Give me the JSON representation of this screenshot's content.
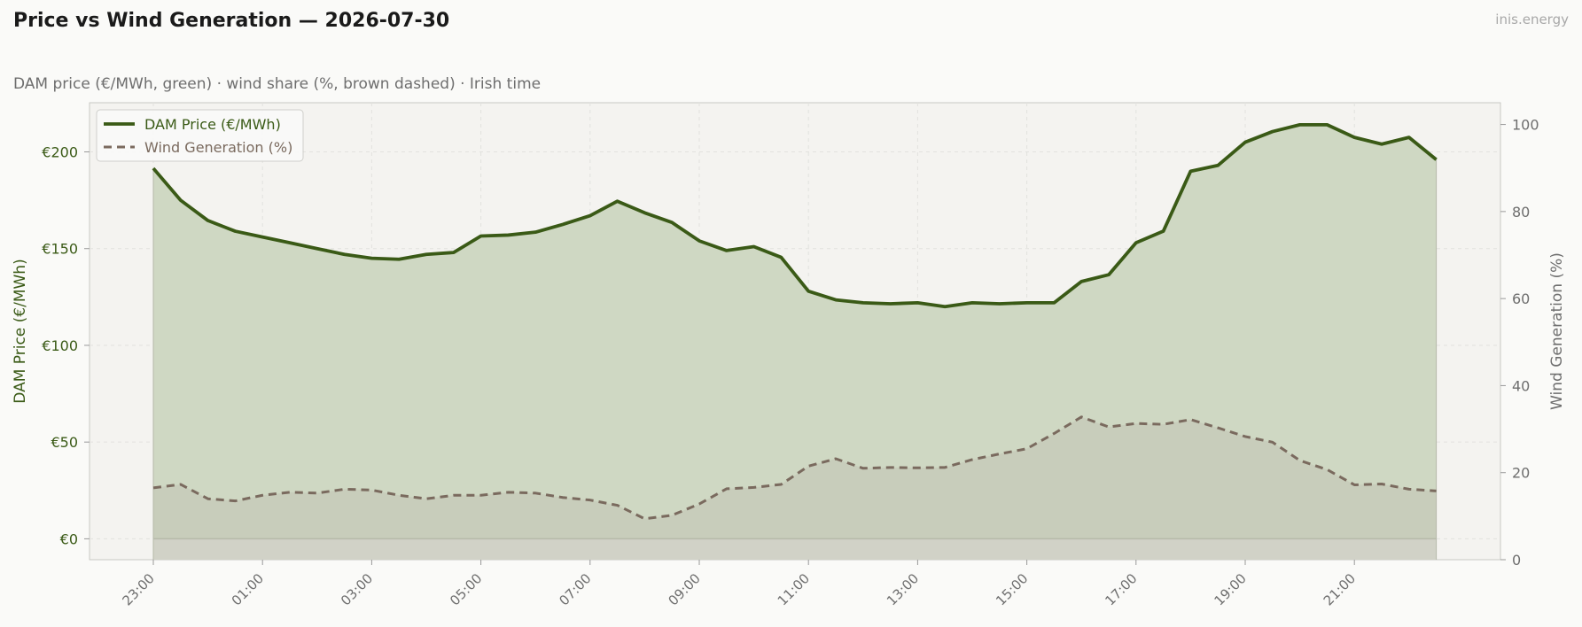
{
  "header": {
    "title": "Price vs Wind Generation — 2026-07-30",
    "brand": "inis.energy",
    "subtitle": "DAM price (€/MWh, green)  ·  wind share (%, brown dashed)  ·  Irish time"
  },
  "colors": {
    "price": "#3a5a16",
    "price_fill": "#cfd8c3",
    "wind": "#7a6a5e",
    "wind_fill": "#c2c5b4",
    "plot_bg": "#f4f3f0",
    "grid": "#e2e2de",
    "axis_text": "#6e6e6e"
  },
  "chart_data": {
    "type": "line",
    "xlabel": "",
    "x": [
      "23:00",
      "23:30",
      "00:00",
      "00:30",
      "01:00",
      "01:30",
      "02:00",
      "02:30",
      "03:00",
      "03:30",
      "04:00",
      "04:30",
      "05:00",
      "05:30",
      "06:00",
      "06:30",
      "07:00",
      "07:30",
      "08:00",
      "08:30",
      "09:00",
      "09:30",
      "10:00",
      "10:30",
      "11:00",
      "11:30",
      "12:00",
      "12:30",
      "13:00",
      "13:30",
      "14:00",
      "14:30",
      "15:00",
      "15:30",
      "16:00",
      "16:30",
      "17:00",
      "17:30",
      "18:00",
      "18:30",
      "19:00",
      "19:30",
      "20:00",
      "20:30",
      "21:00",
      "21:30",
      "22:00",
      "22:30"
    ],
    "x_ticks": [
      "23:00",
      "01:00",
      "03:00",
      "05:00",
      "07:00",
      "09:00",
      "11:00",
      "13:00",
      "15:00",
      "17:00",
      "19:00",
      "21:00"
    ],
    "series": [
      {
        "name": "DAM Price (€/MWh)",
        "axis": "left",
        "style": "solid",
        "values": [
          191.5,
          175,
          164.5,
          159,
          156,
          153,
          150,
          147,
          145,
          144.5,
          147,
          148,
          156.5,
          157,
          158.5,
          162.5,
          167,
          174.5,
          168.5,
          163.5,
          154,
          149,
          151,
          145.5,
          128,
          123.5,
          122,
          121.5,
          122,
          120,
          122,
          121.5,
          122,
          122,
          133,
          136.5,
          153,
          159,
          190,
          193,
          205,
          210.5,
          214,
          214,
          207.5,
          204,
          207.5,
          196
        ]
      },
      {
        "name": "Wind Generation (%)",
        "axis": "right",
        "style": "dashed",
        "values": [
          16.5,
          17.3,
          14,
          13.5,
          14.8,
          15.5,
          15.3,
          16.2,
          16,
          14.8,
          14,
          14.8,
          14.8,
          15.5,
          15.3,
          14.3,
          13.7,
          12.5,
          9.4,
          10.2,
          12.8,
          16.3,
          16.6,
          17.3,
          21.5,
          23.2,
          21,
          21.2,
          21.1,
          21.2,
          23,
          24.3,
          25.5,
          29,
          32.8,
          30.5,
          31.3,
          31.1,
          32.2,
          30.3,
          28.3,
          27,
          22.8,
          20.7,
          17.2,
          17.4,
          16.2,
          15.8
        ]
      }
    ],
    "y_left": {
      "label": "DAM Price (€/MWh)",
      "range": [
        -10.8,
        225.4
      ],
      "ticks": [
        0,
        50,
        100,
        150,
        200
      ],
      "tick_labels": [
        "€0",
        "€50",
        "€100",
        "€150",
        "€200"
      ]
    },
    "y_right": {
      "label": "Wind Generation (%)",
      "range": [
        0,
        105
      ],
      "ticks": [
        0,
        20,
        40,
        60,
        80,
        100
      ],
      "tick_labels": [
        "0",
        "20",
        "40",
        "60",
        "80",
        "100"
      ]
    },
    "grid": true,
    "legend_position": "top-left"
  }
}
